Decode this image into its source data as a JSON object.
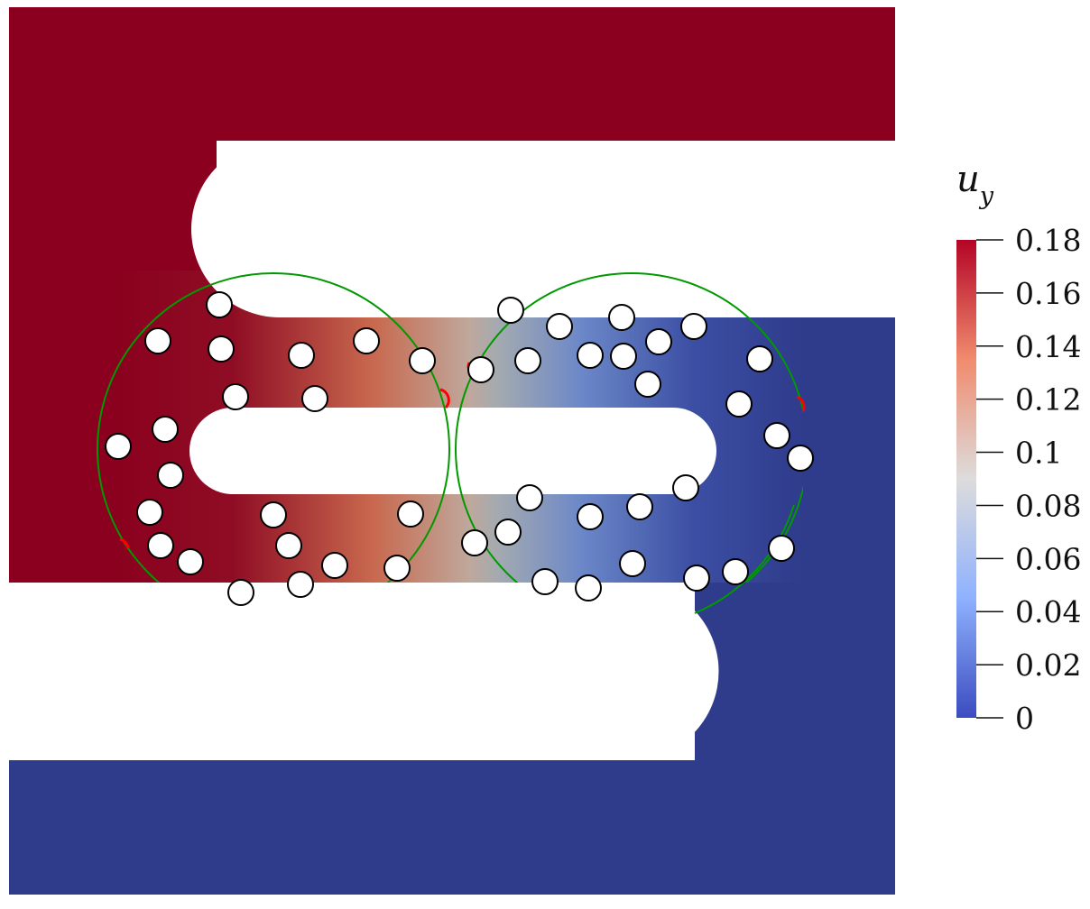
{
  "figure": {
    "colorbar": {
      "title_symbol": "u",
      "title_subscript": "y",
      "ticks": [
        "0.18",
        "0.16",
        "0.14",
        "0.12",
        "0.1",
        "0.08",
        "0.06",
        "0.04",
        "0.02",
        "0"
      ],
      "range": [
        0,
        0.18
      ],
      "gradient_stops": [
        {
          "value": 0.18,
          "color": "#b40426"
        },
        {
          "value": 0.135,
          "color": "#f08b6e"
        },
        {
          "value": 0.09,
          "color": "#dddcdc"
        },
        {
          "value": 0.045,
          "color": "#8fb1fe"
        },
        {
          "value": 0.0,
          "color": "#3b4cc0"
        }
      ]
    },
    "colors": {
      "top_plate": "#8a001e",
      "bottom_plate": "#2f3b8b",
      "left_region": "#8a001e",
      "right_region": "#2f3b8b",
      "interface_circle": "#009900",
      "contact_arc": "#ff0000",
      "particle_fill": "#ffffff",
      "particle_stroke": "#000000"
    }
  }
}
